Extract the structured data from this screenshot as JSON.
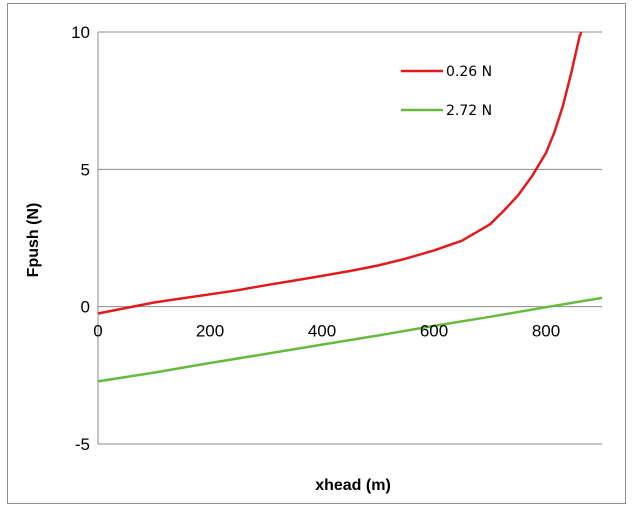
{
  "chart_data": {
    "type": "line",
    "xlabel": "xhead (m)",
    "ylabel": "Fpush (N)",
    "xlim": [
      0,
      900
    ],
    "ylim": [
      -5,
      10
    ],
    "x_ticks": [
      "0",
      "200",
      "400",
      "600",
      "800"
    ],
    "x_tick_values": [
      0,
      200,
      400,
      600,
      800
    ],
    "y_ticks": [
      "-5",
      "0",
      "5",
      "10"
    ],
    "y_tick_values": [
      -5,
      0,
      5,
      10
    ],
    "grid": "horizontal",
    "legend_position": "top-right",
    "series": [
      {
        "name": "0.26 N",
        "color": "#e31a1c",
        "x": [
          0,
          50,
          100,
          150,
          200,
          250,
          300,
          350,
          400,
          450,
          500,
          550,
          600,
          650,
          700,
          725,
          750,
          775,
          800,
          815,
          830,
          845,
          855,
          860,
          863
        ],
        "y": [
          -0.25,
          -0.05,
          0.15,
          0.3,
          0.45,
          0.6,
          0.78,
          0.95,
          1.12,
          1.3,
          1.5,
          1.75,
          2.05,
          2.4,
          3.0,
          3.5,
          4.05,
          4.75,
          5.6,
          6.35,
          7.3,
          8.5,
          9.4,
          9.85,
          10.0
        ]
      },
      {
        "name": "2.72 N",
        "color": "#66bb3f",
        "x": [
          0,
          100,
          200,
          300,
          400,
          500,
          600,
          700,
          800,
          900
        ],
        "y": [
          -2.72,
          -2.4,
          -2.05,
          -1.72,
          -1.38,
          -1.05,
          -0.7,
          -0.37,
          -0.02,
          0.32
        ]
      }
    ]
  }
}
